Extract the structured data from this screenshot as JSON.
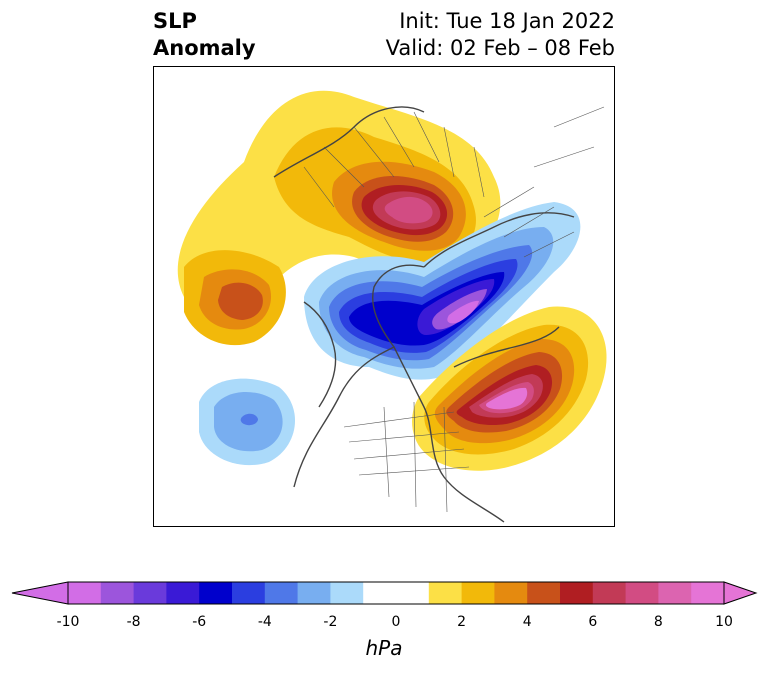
{
  "title": {
    "left_line1": "SLP",
    "left_line2": "Anomaly",
    "init": "Init: Tue 18 Jan 2022",
    "valid": "Valid: 02 Feb – 08 Feb"
  },
  "map": {
    "projection": "north-polar-stereographic",
    "field": "sea level pressure anomaly",
    "features": [
      {
        "name": "high-over-northern-russia",
        "sign": "positive",
        "peak_hPa": 10
      },
      {
        "name": "high-over-north-atlantic",
        "sign": "positive",
        "peak_hPa": 10
      },
      {
        "name": "low-over-arctic-canada-greenland",
        "sign": "negative",
        "peak_hPa": -10
      },
      {
        "name": "low-over-northeast-pacific",
        "sign": "negative",
        "peak_hPa": -4
      },
      {
        "name": "high-over-north-pacific",
        "sign": "positive",
        "peak_hPa": 5
      }
    ]
  },
  "colorbar": {
    "unit": "hPa",
    "ticks": [
      "-10",
      "-8",
      "-6",
      "-4",
      "-2",
      "0",
      "2",
      "4",
      "6",
      "8",
      "10"
    ],
    "range": [
      -10,
      10
    ],
    "extend": "both",
    "colors": [
      "#d26de6",
      "#9c55dc",
      "#6a3adb",
      "#3a1ad6",
      "#0000cc",
      "#2b3ee0",
      "#4f78e8",
      "#78aef0",
      "#abdafa",
      "#ffffff",
      "#ffffff",
      "#fce046",
      "#f2b90a",
      "#e58a0f",
      "#c8511a",
      "#b01e22",
      "#c23a56",
      "#d24c83",
      "#dc64b0",
      "#e574d6"
    ]
  }
}
